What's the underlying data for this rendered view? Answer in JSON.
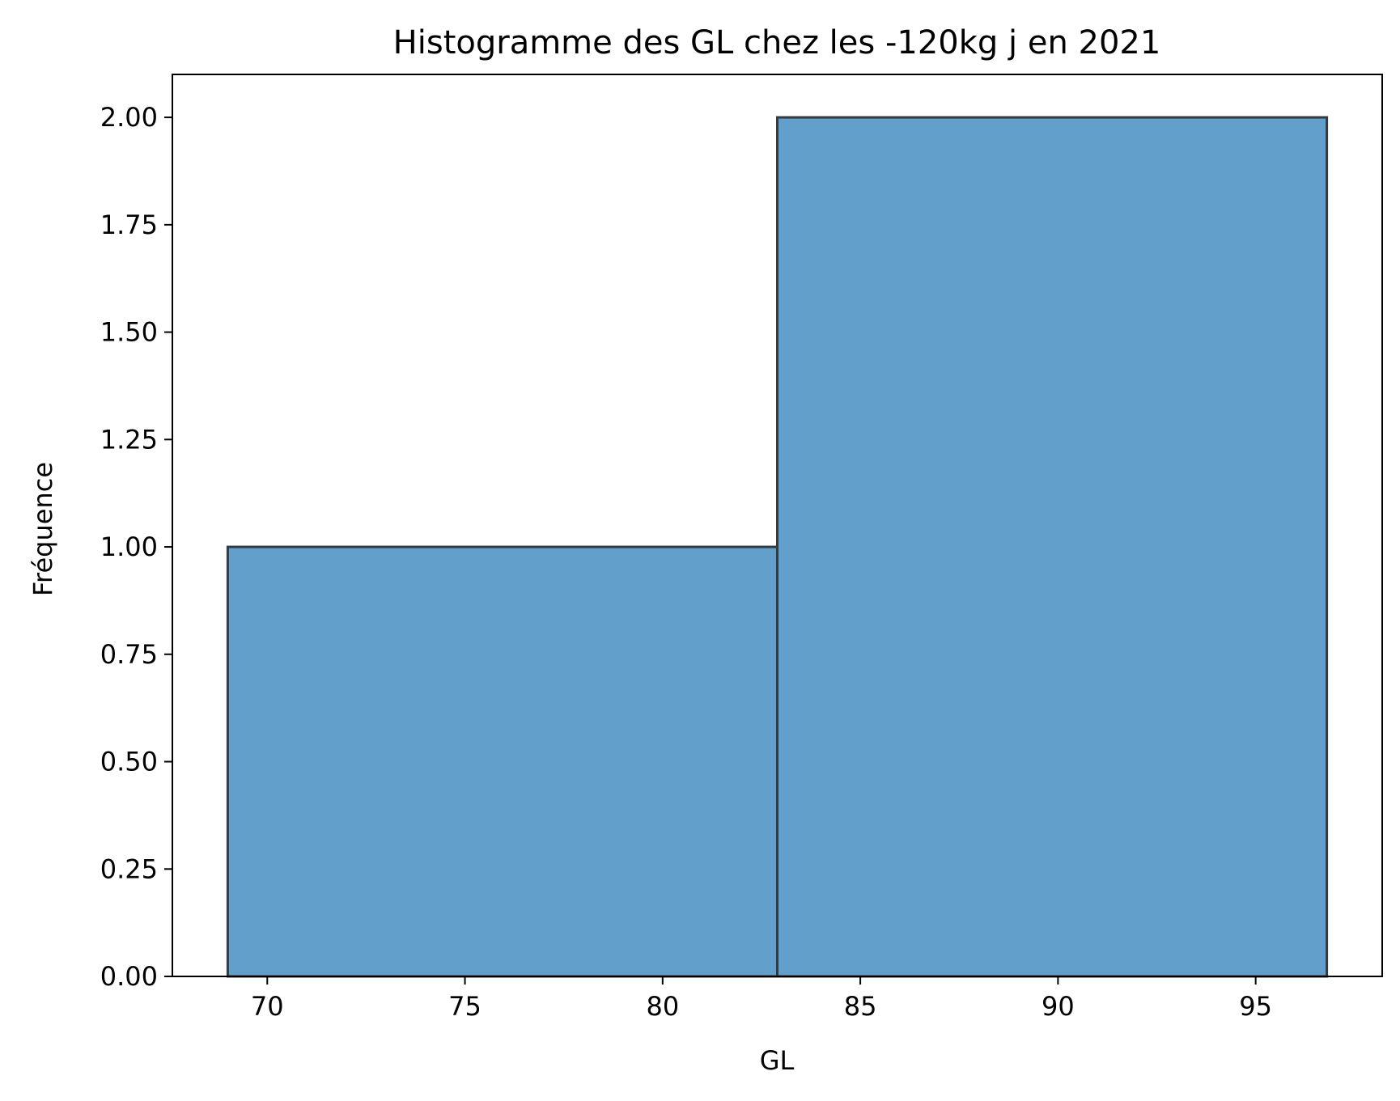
{
  "chart_data": {
    "type": "bar",
    "title": "Histogramme des GL chez les -120kg j en 2021",
    "xlabel": "GL",
    "ylabel": "Fréquence",
    "bins": [
      {
        "start": 69.0,
        "end": 82.9,
        "value": 1
      },
      {
        "start": 82.9,
        "end": 96.8,
        "value": 2
      }
    ],
    "xlim": [
      67.6,
      98.2
    ],
    "ylim": [
      0,
      2.1
    ],
    "x_ticks": [
      70,
      75,
      80,
      85,
      90,
      95
    ],
    "x_tick_labels": [
      "70",
      "75",
      "80",
      "85",
      "90",
      "95"
    ],
    "y_ticks": [
      0,
      0.25,
      0.5,
      0.75,
      1.0,
      1.25,
      1.5,
      1.75,
      2.0
    ],
    "y_tick_labels": [
      "0.00",
      "0.25",
      "0.50",
      "0.75",
      "1.00",
      "1.25",
      "1.50",
      "1.75",
      "2.00"
    ],
    "grid": false,
    "legend": "none",
    "colors": {
      "bar_fill": "#639fcb",
      "bar_edge": "#333a40",
      "axis": "#000000"
    }
  }
}
